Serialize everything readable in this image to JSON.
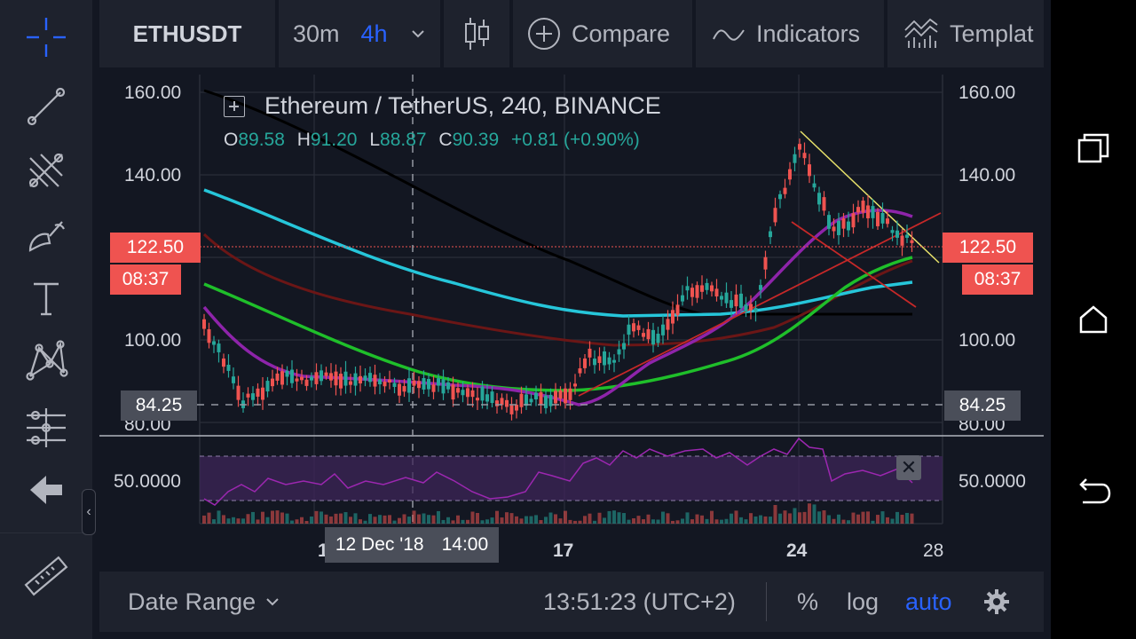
{
  "top_toolbar": {
    "symbol": "ETHUSDT",
    "intervals": [
      "30m",
      "4h"
    ],
    "active_interval": "4h",
    "compare_label": "Compare",
    "indicators_label": "Indicators",
    "templates_label": "Templat"
  },
  "legend": {
    "title": "Ethereum / TetherUS, 240, BINANCE",
    "open_key": "O",
    "open": "89.58",
    "high_key": "H",
    "high": "91.20",
    "low_key": "L",
    "low": "88.87",
    "close_key": "C",
    "close": "90.39",
    "change": "+0.81 (+0.90%)"
  },
  "price_axis": {
    "ticks": [
      "160.00",
      "140.00",
      "100.00",
      "80.00"
    ],
    "rsi_tick": "50.0000",
    "current_price": "122.50",
    "countdown": "08:37",
    "crosshair_price": "84.25"
  },
  "time_axis": {
    "ticks": [
      "1",
      "17",
      "24",
      "28"
    ],
    "crosshair_date": "12 Dec '18",
    "crosshair_time": "14:00"
  },
  "bottom_bar": {
    "date_range_label": "Date Range",
    "clock": "13:51:23 (UTC+2)",
    "percent_label": "%",
    "log_label": "log",
    "auto_label": "auto"
  },
  "colors": {
    "background": "#131722",
    "panel": "#1e222d",
    "up_candle": "#26a69a",
    "down_candle": "#ef5350",
    "accent": "#2962ff",
    "ma_cyan": "#26c6da",
    "ma_purple": "#8e24aa",
    "ma_green": "#1fbf2a",
    "ma_darkred": "#6b1616",
    "ma_black": "#000000",
    "rsi_line": "#9c27b0"
  },
  "icons": {
    "left_toolbar": [
      "crosshair-icon",
      "trend-line-icon",
      "fib-fan-icon",
      "brush-icon",
      "text-icon",
      "pattern-icon",
      "measure-tools-icon",
      "back-arrow-icon",
      "ruler-icon"
    ],
    "android_nav": [
      "recents-icon",
      "home-icon",
      "back-icon"
    ]
  }
}
